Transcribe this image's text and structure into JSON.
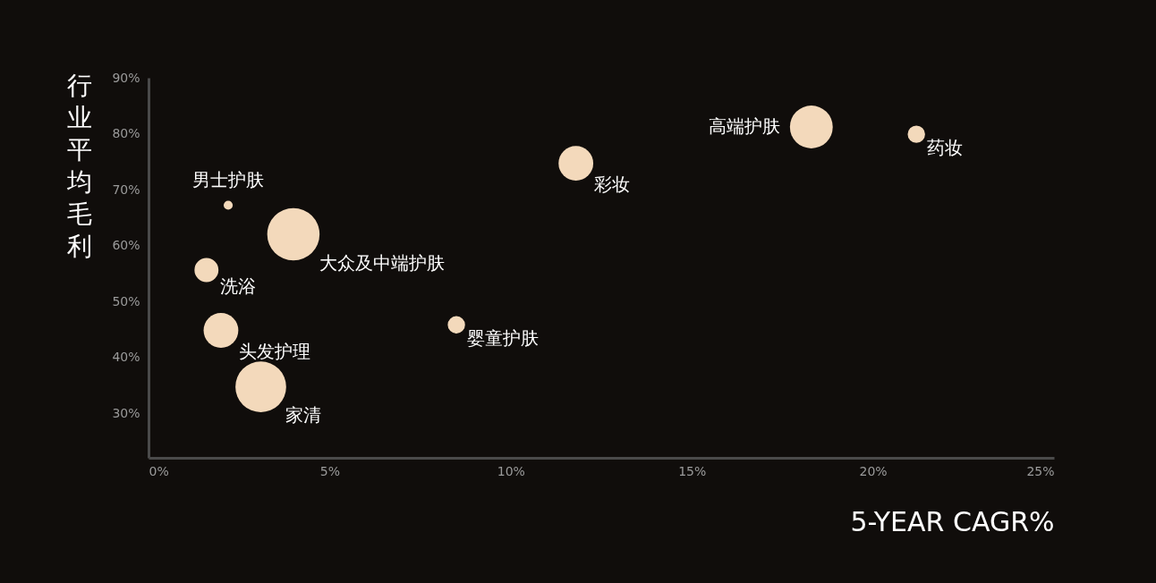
{
  "chart_data": {
    "type": "bubble",
    "xlabel": "5-YEAR CAGR%",
    "ylabel": "行业平均毛利",
    "x": [
      2.2,
      4.0,
      1.6,
      2.0,
      3.1,
      8.5,
      11.8,
      18.3,
      21.2
    ],
    "values": [
      67.2,
      62.0,
      55.6,
      44.8,
      34.7,
      45.8,
      74.7,
      81.2,
      79.9
    ],
    "sizes": [
      0.03,
      1,
      0.21,
      0.44,
      0.94,
      0.11,
      0.44,
      0.67,
      0.11
    ],
    "color": "#f3d9bb",
    "xlim": [
      0,
      25
    ],
    "ylim": [
      22,
      90
    ],
    "xticks": [
      {
        "value": 0,
        "label": "0%"
      },
      {
        "value": 5,
        "label": "5%"
      },
      {
        "value": 10,
        "label": "10%"
      },
      {
        "value": 15,
        "label": "15%"
      },
      {
        "value": 20,
        "label": "20%"
      },
      {
        "value": 25,
        "label": "25%"
      }
    ],
    "yticks": [
      {
        "value": 30,
        "label": "30%"
      },
      {
        "value": 40,
        "label": "40%"
      },
      {
        "value": 50,
        "label": "50%"
      },
      {
        "value": 60,
        "label": "60%"
      },
      {
        "value": 70,
        "label": "70%"
      },
      {
        "value": 80,
        "label": "80%"
      },
      {
        "value": 90,
        "label": "90%"
      }
    ],
    "annotations": [
      {
        "text": "男士护肤",
        "x": 2.2,
        "y": 67.2
      },
      {
        "text": "大众及中端护肤",
        "x": 4.0,
        "y": 62.0
      },
      {
        "text": "洗浴",
        "x": 1.6,
        "y": 55.6
      },
      {
        "text": "头发护理",
        "x": 2.0,
        "y": 44.8
      },
      {
        "text": "家清",
        "x": 3.1,
        "y": 34.7
      },
      {
        "text": "婴童护肤",
        "x": 8.5,
        "y": 45.8
      },
      {
        "text": "彩妆",
        "x": 11.8,
        "y": 74.7
      },
      {
        "text": "高端护肤",
        "x": 18.3,
        "y": 81.2
      },
      {
        "text": "药妆",
        "x": 21.2,
        "y": 79.9
      }
    ],
    "grid": false,
    "legend": false
  }
}
